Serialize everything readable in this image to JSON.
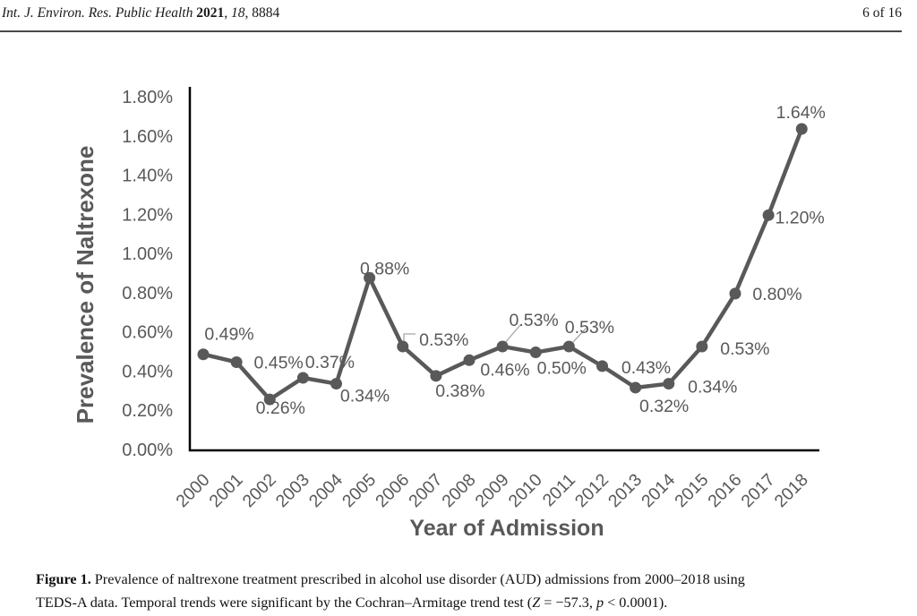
{
  "page": {
    "header": {
      "journal_segments": [
        {
          "text": "Int. J. Environ. Res. Public Health ",
          "style": "italic"
        },
        {
          "text": "2021",
          "style": "bold"
        },
        {
          "text": ", ",
          "style": "normal"
        },
        {
          "text": "18",
          "style": "italic"
        },
        {
          "text": ", 8884",
          "style": "normal"
        }
      ],
      "page_number": "6 of 16"
    },
    "caption": {
      "segments": [
        {
          "text": "Figure 1.",
          "style": "bold"
        },
        {
          "text": " Prevalence of naltrexone treatment prescribed in alcohol use disorder (AUD) admissions from 2000–2018 using",
          "style": "normal"
        },
        {
          "text": "",
          "style": "break"
        },
        {
          "text": "TEDS-A data. Temporal trends were significant by the Cochran–Armitage trend test (",
          "style": "normal"
        },
        {
          "text": "Z",
          "style": "italic"
        },
        {
          "text": " = −57.3, ",
          "style": "normal"
        },
        {
          "text": "p",
          "style": "italic"
        },
        {
          "text": " < 0.0001).",
          "style": "normal"
        }
      ]
    }
  },
  "chart_data": {
    "type": "line",
    "title": "",
    "xlabel": "Year of Admission",
    "ylabel": "Prevalence of Naltrexone",
    "categories": [
      "2000",
      "2001",
      "2002",
      "2003",
      "2004",
      "2005",
      "2006",
      "2007",
      "2008",
      "2009",
      "2010",
      "2011",
      "2012",
      "2013",
      "2014",
      "2015",
      "2016",
      "2017",
      "2018"
    ],
    "values": [
      0.49,
      0.45,
      0.26,
      0.37,
      0.34,
      0.88,
      0.53,
      0.38,
      0.46,
      0.53,
      0.5,
      0.53,
      0.43,
      0.32,
      0.34,
      0.53,
      0.8,
      1.2,
      1.64
    ],
    "point_labels": [
      "0.49%",
      "0.45%",
      "0.26%",
      "0.37%",
      "0.34%",
      "0.88%",
      "0.53%",
      "0.38%",
      "0.46%",
      "0.53%",
      "0.50%",
      "0.53%",
      "0.43%",
      "0.32%",
      "0.34%",
      "0.53%",
      "0.80%",
      "1.20%",
      "1.64%"
    ],
    "y_ticks": [
      "0.00%",
      "0.20%",
      "0.40%",
      "0.60%",
      "0.80%",
      "1.00%",
      "1.20%",
      "1.40%",
      "1.60%",
      "1.80%"
    ],
    "ylim": [
      0,
      1.8
    ],
    "grid": false,
    "legend": "none",
    "line_color": "#595959",
    "marker_color": "#595959",
    "label_color": "#595959",
    "axis_color": "#000000",
    "leader_color": "#a6a6a6"
  }
}
